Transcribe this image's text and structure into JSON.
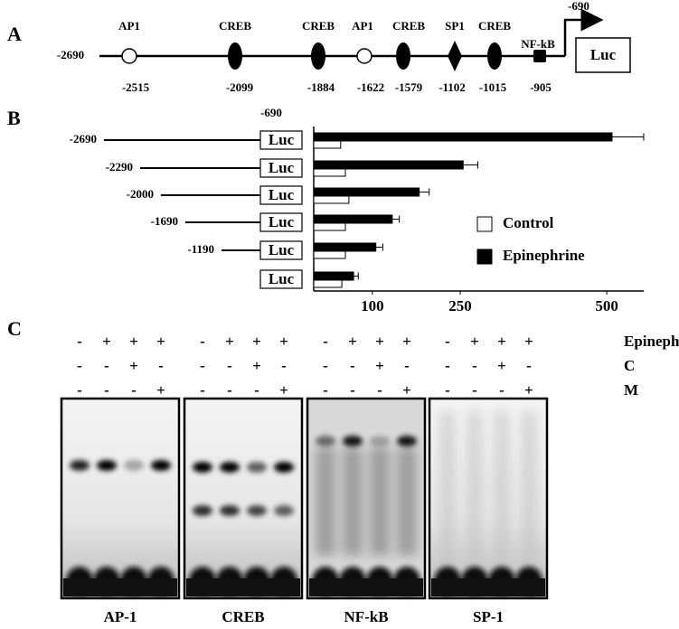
{
  "panel_a": {
    "letter": "A",
    "start": -2690,
    "tss": -690,
    "reporter": "Luc",
    "nodes": [
      {
        "label": "AP1",
        "position": -2515,
        "shape": "circle"
      },
      {
        "label": "CREB",
        "position": -2099,
        "shape": "ellipse"
      },
      {
        "label": "CREB",
        "position": -1884,
        "shape": "ellipse"
      },
      {
        "label": "AP1",
        "position": -1622,
        "shape": "circle"
      },
      {
        "label": "CREB",
        "position": -1579,
        "shape": "ellipse"
      },
      {
        "label": "SP1",
        "position": -1102,
        "shape": "diamond"
      },
      {
        "label": "CREB",
        "position": -1015,
        "shape": "ellipse"
      },
      {
        "label": "NF-kB",
        "position": -905,
        "shape": "square"
      }
    ]
  },
  "chart_data": {
    "type": "bar",
    "orientation": "horizontal",
    "letter": "B",
    "promoter_end": -690,
    "construct_label": "Luc",
    "categories": [
      -2690,
      -2290,
      -2000,
      -1690,
      -1190,
      null
    ],
    "series": [
      {
        "name": "Control",
        "color": "#ffffff",
        "values": [
          46,
          54,
          60,
          54,
          54,
          48
        ]
      },
      {
        "name": "Epinephrine",
        "color": "#000000",
        "values": [
          509,
          255,
          180,
          134,
          106,
          68
        ],
        "errors": [
          54,
          25,
          17,
          12,
          12,
          8
        ]
      }
    ],
    "xlim": [
      0,
      560
    ],
    "xticks": [
      100,
      250,
      500
    ],
    "legend": "right"
  },
  "panel_c": {
    "letter": "C",
    "conditions": [
      {
        "label": "Epinephrine",
        "signs": [
          "-",
          "+",
          "+",
          "+"
        ]
      },
      {
        "label": "C",
        "signs": [
          "-",
          "-",
          "+",
          "-"
        ]
      },
      {
        "label": "M",
        "signs": [
          "-",
          "-",
          "-",
          "+"
        ]
      }
    ],
    "gels": [
      "AP-1",
      "CREB",
      "NF-kB",
      "SP-1"
    ]
  }
}
